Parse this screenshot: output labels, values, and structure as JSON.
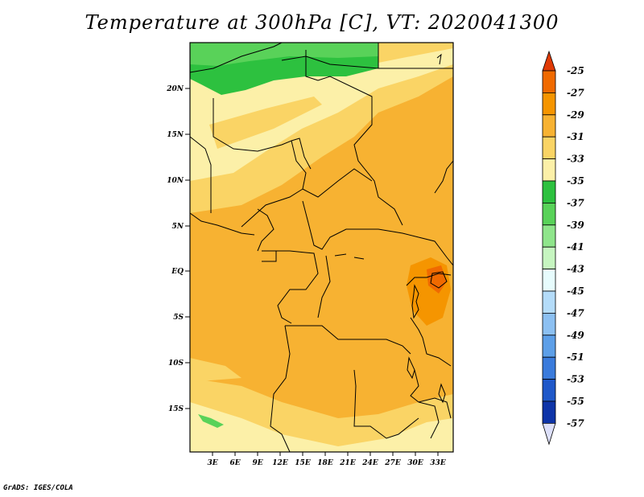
{
  "title": "Temperature at 300hPa [C], VT: 2020041300",
  "credit": "GrADS: IGES/COLA",
  "map": {
    "lat_labels": [
      "20N",
      "15N",
      "10N",
      "5N",
      "EQ",
      "5S",
      "10S",
      "15S"
    ],
    "lon_labels": [
      "3E",
      "6E",
      "9E",
      "12E",
      "15E",
      "18E",
      "21E",
      "24E",
      "27E",
      "30E",
      "33E"
    ]
  },
  "colorbar": {
    "labels": [
      "-25",
      "-27",
      "-29",
      "-31",
      "-33",
      "-35",
      "-37",
      "-39",
      "-41",
      "-43",
      "-45",
      "-47",
      "-49",
      "-51",
      "-53",
      "-55",
      "-57"
    ],
    "colors": [
      "#e03a05",
      "#f06a00",
      "#f59500",
      "#f7b232",
      "#fad465",
      "#fcf0a8",
      "#2dc13f",
      "#59d259",
      "#8fe58b",
      "#c6f5c0",
      "#e7fcfd",
      "#b4dcf9",
      "#8cc0f2",
      "#5d9fe8",
      "#3a7bdc",
      "#1f58c9",
      "#0e34a8",
      "#0b1a6e",
      "#dde0fa"
    ]
  }
}
